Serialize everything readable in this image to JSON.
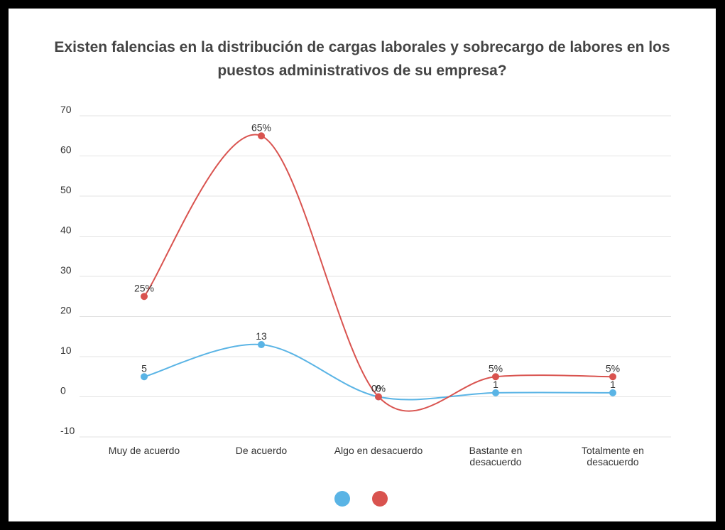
{
  "chart_data": {
    "type": "line",
    "title": "Existen falencias en la distribución de cargas laborales y sobrecargo de labores en los puestos administrativos de su empresa?",
    "categories": [
      "Muy de acuerdo",
      "De acuerdo",
      "Algo en desacuerdo",
      "Bastante en desacuerdo",
      "Totalmente en desacuerdo"
    ],
    "series": [
      {
        "color": "#5ab4e5",
        "values": [
          5,
          13,
          0,
          1,
          1
        ]
      },
      {
        "color": "#d9534f",
        "values": [
          25,
          65,
          0,
          5,
          5
        ],
        "value_labels": [
          "25%",
          "65%",
          "0%",
          "5%",
          "5%"
        ]
      }
    ],
    "ylim": [
      -10,
      70
    ],
    "yticks": [
      -10,
      0,
      10,
      20,
      30,
      40,
      50,
      60,
      70
    ],
    "grid": true,
    "smooth": true
  }
}
